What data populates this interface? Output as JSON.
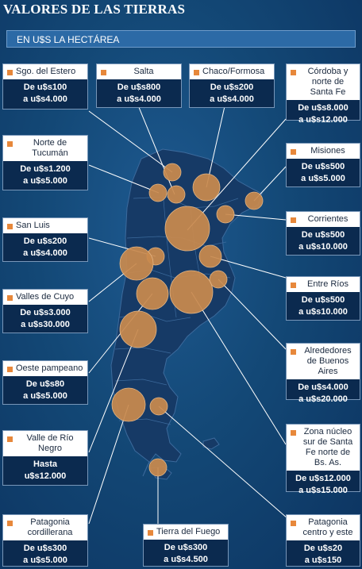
{
  "title": "VALORES DE LAS TIERRAS",
  "subtitle": "EN U$S LA HECTÁREA",
  "colors": {
    "accent": "#e7883b",
    "bubble": "#c98a4e",
    "panel": "#0b2a4f",
    "land": "#163a66"
  },
  "regions": [
    {
      "id": "sgo-del-estero",
      "name": "Sgo. del Estero",
      "price1": "De u$s100",
      "price2": "a u$s4.000"
    },
    {
      "id": "salta",
      "name": "Salta",
      "price1": "De u$s800",
      "price2": "a u$s4.000"
    },
    {
      "id": "chaco-formosa",
      "name": "Chaco/Formosa",
      "price1": "De u$s200",
      "price2": "a u$s4.000"
    },
    {
      "id": "cordoba-norte-santa-fe",
      "name": "Córdoba y norte de Santa Fe",
      "price1": "De u$s8.000",
      "price2": "a u$s12.000"
    },
    {
      "id": "norte-tucuman",
      "name": "Norte de Tucumán",
      "price1": "De u$s1.200",
      "price2": "a u$s5.000"
    },
    {
      "id": "misiones",
      "name": "Misiones",
      "price1": "De u$s500",
      "price2": "a u$s5.000"
    },
    {
      "id": "corrientes",
      "name": "Corrientes",
      "price1": "De u$s500",
      "price2": "a u$s10.000"
    },
    {
      "id": "san-luis",
      "name": "San Luis",
      "price1": "De u$s200",
      "price2": "a u$s4.000"
    },
    {
      "id": "entre-rios",
      "name": "Entre Ríos",
      "price1": "De u$s500",
      "price2": "a u$s10.000"
    },
    {
      "id": "valles-de-cuyo",
      "name": "Valles de Cuyo",
      "price1": "De u$s3.000",
      "price2": "a u$s30.000"
    },
    {
      "id": "alrededores-bsas",
      "name": "Alrededores de Buenos Aires",
      "price1": "De u$s4.000",
      "price2": "a u$s20.000"
    },
    {
      "id": "oeste-pampeano",
      "name": "Oeste pampeano",
      "price1": "De u$s80",
      "price2": "a u$s5.000"
    },
    {
      "id": "valle-rio-negro",
      "name": "Valle de Río Negro",
      "price1": "Hasta",
      "price2": "u$s12.000"
    },
    {
      "id": "zona-nucleo",
      "name": "Zona núcleo sur de Santa Fe norte de Bs. As.",
      "price1": "De u$s12.000",
      "price2": "a u$s15.000"
    },
    {
      "id": "patagonia-cordillerana",
      "name": "Patagonia cordillerana",
      "price1": "De u$s300",
      "price2": "a u$s5.000"
    },
    {
      "id": "tierra-del-fuego",
      "name": "Tierra del Fuego",
      "price1": "De u$s300",
      "price2": "a u$s4.500"
    },
    {
      "id": "patagonia-centro-este",
      "name": "Patagonia centro y este",
      "price1": "De u$s20",
      "price2": "a u$s150"
    }
  ]
}
